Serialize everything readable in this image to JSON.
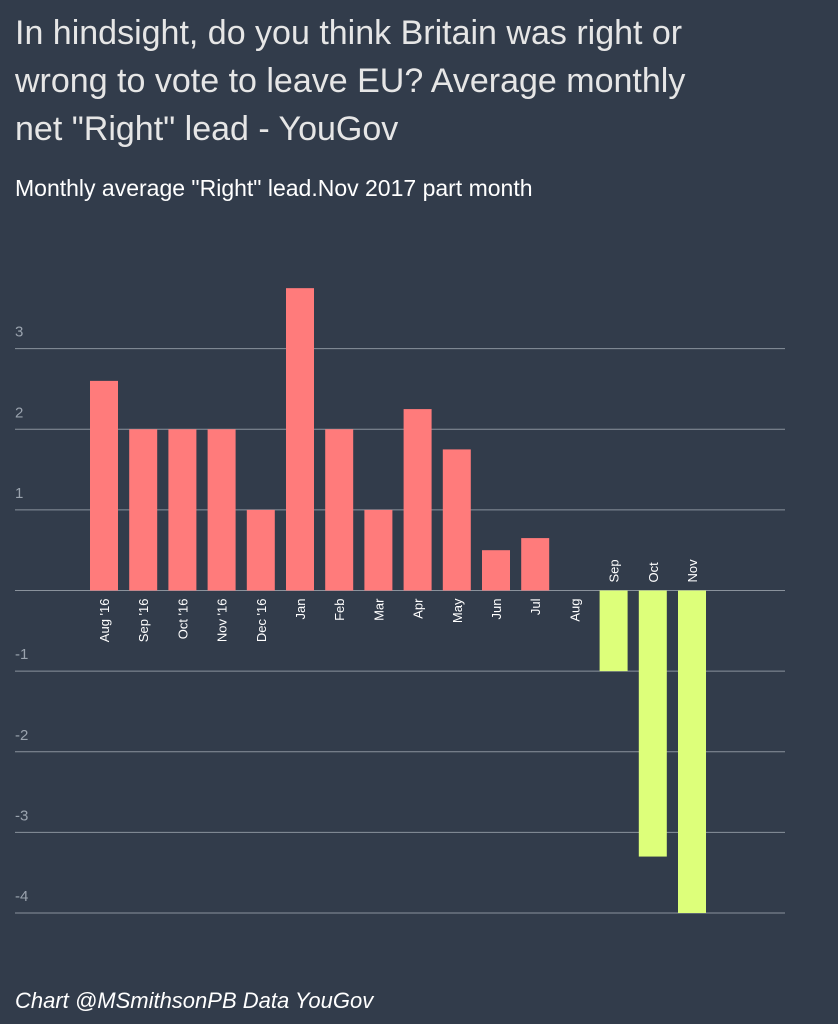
{
  "chart_data": {
    "type": "bar",
    "title": [
      "In hindsight, do you think Britain was right or",
      "wrong to vote to leave EU? Average monthly",
      "net \"Right\" lead - YouGov"
    ],
    "subtitle": "Monthly average \"Right\" lead.Nov 2017 part month",
    "footer": "Chart @MSmithsonPB Data YouGov",
    "categories": [
      "Aug '16",
      "Sep '16",
      "Oct '16",
      "Nov '16",
      "Dec '16",
      "Jan",
      "Feb",
      "Mar",
      "Apr",
      "May",
      "Jun",
      "Jul",
      "Aug",
      "Sep",
      "Oct",
      "Nov"
    ],
    "values": [
      2.6,
      2,
      2,
      2,
      1,
      3.75,
      2,
      1,
      2.25,
      1.75,
      0.5,
      0.65,
      0,
      -1,
      -3.3,
      -4
    ],
    "positive_color": "#ff7b7b",
    "negative_color": "#ddff7a",
    "ylim": [
      -4,
      4
    ],
    "yticks": [
      -4,
      -3,
      -2,
      -1,
      1,
      2,
      3
    ],
    "grid": true
  }
}
